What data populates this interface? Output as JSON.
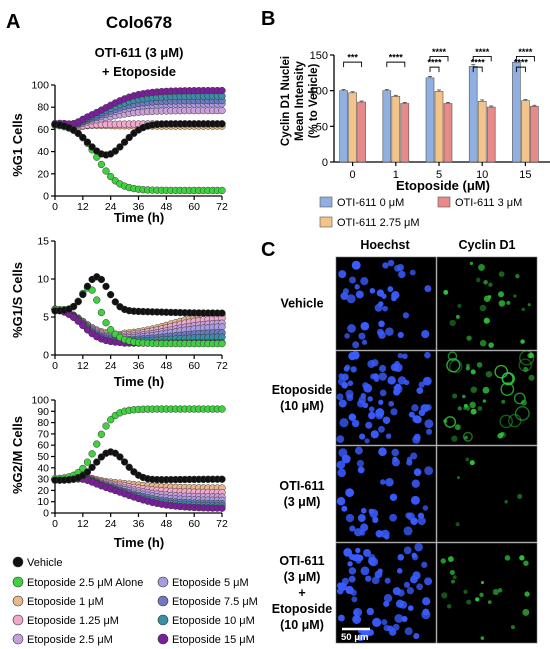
{
  "panel_labels": {
    "a": "A",
    "b": "B",
    "c": "C"
  },
  "panel_a": {
    "cell_line": "Colo678",
    "title_line1": "OTI-611 (3 μM)",
    "title_line2": "+ Etoposide"
  },
  "legend": {
    "items": [
      {
        "label": "Vehicle",
        "color": "#111111"
      },
      {
        "label": "Etoposide 2.5 μM Alone",
        "color": "#3fd13f"
      },
      {
        "label": "Etoposide 1 μM",
        "color": "#e8b98a"
      },
      {
        "label": "Etoposide 1.25 μM",
        "color": "#f2a7cf"
      },
      {
        "label": "Etoposide 2.5 μM",
        "color": "#c9a0dc"
      },
      {
        "label": "Etoposide 5 μM",
        "color": "#a99be0"
      },
      {
        "label": "Etoposide 7.5 μM",
        "color": "#6f79c2"
      },
      {
        "label": "Etoposide 10 μM",
        "color": "#3a8fa6"
      },
      {
        "label": "Etoposide 15 μM",
        "color": "#7a1f9a"
      }
    ]
  },
  "chart_data": [
    {
      "type": "scatter",
      "xlabel": "Time (h)",
      "ylabel": "%G1 Cells",
      "xlim": [
        0,
        72
      ],
      "ylim": [
        0,
        100
      ],
      "xticks": [
        0,
        12,
        24,
        36,
        48,
        60,
        72
      ],
      "yticks": [
        0,
        20,
        40,
        60,
        80,
        100
      ],
      "series_endpoints": [
        {
          "name": "Vehicle",
          "t0": 65,
          "t72": 63,
          "dip_t": 22,
          "dip_v": 37
        },
        {
          "name": "Etoposide 2.5 μM Alone",
          "t0": 65,
          "t72": 5
        },
        {
          "name": "Etoposide 1 μM",
          "t0": 64,
          "t72": 63
        },
        {
          "name": "Etoposide 1.25 μM",
          "t0": 64,
          "t72": 65
        },
        {
          "name": "Etoposide 2.5 μM",
          "t0": 64,
          "t72": 77
        },
        {
          "name": "Etoposide 5 μM",
          "t0": 64,
          "t72": 83
        },
        {
          "name": "Etoposide 7.5 μM",
          "t0": 64,
          "t72": 86
        },
        {
          "name": "Etoposide 10 μM",
          "t0": 64,
          "t72": 90
        },
        {
          "name": "Etoposide 15 μM",
          "t0": 64,
          "t72": 95
        }
      ]
    },
    {
      "type": "scatter",
      "xlabel": "Time (h)",
      "ylabel": "%G1/S Cells",
      "xlim": [
        0,
        72
      ],
      "ylim": [
        0,
        15
      ],
      "xticks": [
        0,
        12,
        24,
        36,
        48,
        60,
        72
      ],
      "yticks": [
        0,
        5,
        10,
        15
      ]
    },
    {
      "type": "scatter",
      "xlabel": "Time (h)",
      "ylabel": "%G2/M Cells",
      "xlim": [
        0,
        72
      ],
      "ylim": [
        0,
        100
      ],
      "xticks": [
        0,
        12,
        24,
        36,
        48,
        60,
        72
      ],
      "yticks": [
        0,
        10,
        20,
        30,
        40,
        50,
        60,
        70,
        80,
        90,
        100
      ]
    },
    {
      "type": "bar",
      "ylabel_lines": [
        "Cyclin D1 Nuclei",
        "Mean Intensity",
        "(% to Vehicle)"
      ],
      "xlabel": "Etoposide (μM)",
      "categories": [
        "0",
        "1",
        "5",
        "10",
        "15"
      ],
      "ylim": [
        0,
        150
      ],
      "yticks": [
        0,
        50,
        100,
        150
      ],
      "series": [
        {
          "name": "OTI-611 0 μM",
          "color": "#8fb0e0",
          "values": [
            100,
            100,
            118,
            134,
            140
          ],
          "errors": [
            1.5,
            1.5,
            2,
            2.5,
            2.5
          ]
        },
        {
          "name": "OTI-611 2.75 μM",
          "color": "#f2c38a",
          "values": [
            97,
            92,
            99,
            85,
            86
          ],
          "errors": [
            1.5,
            1.5,
            2,
            2,
            1.5
          ]
        },
        {
          "name": "OTI-611 3 μM",
          "color": "#e88a8a",
          "values": [
            84,
            82,
            82,
            77,
            78
          ],
          "errors": [
            1.5,
            1.5,
            1.5,
            1.5,
            1.5
          ]
        }
      ],
      "significance": [
        {
          "category": "0",
          "from": 0,
          "to": 2,
          "label": "***"
        },
        {
          "category": "1",
          "from": 0,
          "to": 2,
          "label": "****"
        },
        {
          "category": "5",
          "from": 0,
          "to": 2,
          "label": "****"
        },
        {
          "category": "5",
          "from": 0,
          "to": 1,
          "label": "****"
        },
        {
          "category": "10",
          "from": 0,
          "to": 2,
          "label": "****"
        },
        {
          "category": "10",
          "from": 0,
          "to": 1,
          "label": "****"
        },
        {
          "category": "15",
          "from": 0,
          "to": 2,
          "label": "****"
        },
        {
          "category": "15",
          "from": 0,
          "to": 1,
          "label": "****"
        }
      ]
    }
  ],
  "panel_c": {
    "col_headers": [
      "Hoechst",
      "Cyclin D1"
    ],
    "row_labels": [
      [
        "Vehicle"
      ],
      [
        "Etoposide",
        "(10 μM)"
      ],
      [
        "OTI-611",
        "(3 μM)"
      ],
      [
        "OTI-611",
        "(3 μM)",
        "+",
        "Etoposide",
        "(10 μM)"
      ]
    ],
    "scale_bar": "50 μm",
    "colors": {
      "hoechst": "#3a5cff",
      "cyclin": "#2fbf3a"
    }
  }
}
